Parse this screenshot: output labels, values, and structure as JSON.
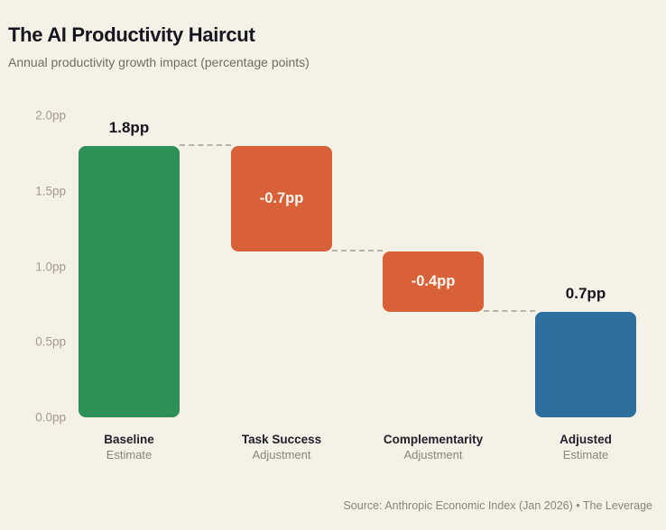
{
  "header": {
    "title": "The AI Productivity Haircut",
    "subtitle": "Annual productivity growth impact (percentage points)"
  },
  "footer": {
    "source": "Source: Anthropic Economic Index (Jan 2026) • The Leverage"
  },
  "colors": {
    "background": "#f5f1e6",
    "start_bar": "#2d9157",
    "decrease_bar": "#d9613a",
    "total_bar": "#2d6f9e",
    "connector": "#b8b3a6",
    "tick_label": "#a39b8b",
    "value_label": "#15151f",
    "value_label_inverse": "#fdf9f0"
  },
  "chart_data": {
    "type": "bar",
    "subtype": "waterfall",
    "title": "The AI Productivity Haircut",
    "subtitle": "Annual productivity growth impact (percentage points)",
    "xlabel": "",
    "ylabel": "",
    "ylim": [
      0,
      2.0
    ],
    "grid": false,
    "legend": false,
    "unit": "pp",
    "y_ticks": [
      {
        "value": 2.0,
        "label": "2.0pp"
      },
      {
        "value": 1.5,
        "label": "1.5pp"
      },
      {
        "value": 1.0,
        "label": "1.0pp"
      },
      {
        "value": 0.5,
        "label": "0.5pp"
      },
      {
        "value": 0.0,
        "label": "0.0pp"
      }
    ],
    "categories": [
      "Baseline Estimate",
      "Task Success Adjustment",
      "Complementarity Adjustment",
      "Adjusted Estimate"
    ],
    "bars": [
      {
        "category": "Baseline",
        "category_sub": "Estimate",
        "top": 1.8,
        "bottom": 0.0,
        "value": 1.8,
        "value_label": "1.8pp",
        "label_position": "above",
        "role": "start"
      },
      {
        "category": "Task Success",
        "category_sub": "Adjustment",
        "top": 1.8,
        "bottom": 1.1,
        "value": -0.7,
        "value_label": "-0.7pp",
        "label_position": "inside",
        "role": "decrease"
      },
      {
        "category": "Complementarity",
        "category_sub": "Adjustment",
        "top": 1.1,
        "bottom": 0.7,
        "value": -0.4,
        "value_label": "-0.4pp",
        "label_position": "inside",
        "role": "decrease"
      },
      {
        "category": "Adjusted",
        "category_sub": "Estimate",
        "top": 0.7,
        "bottom": 0.0,
        "value": 0.7,
        "value_label": "0.7pp",
        "label_position": "above",
        "role": "total"
      }
    ]
  }
}
